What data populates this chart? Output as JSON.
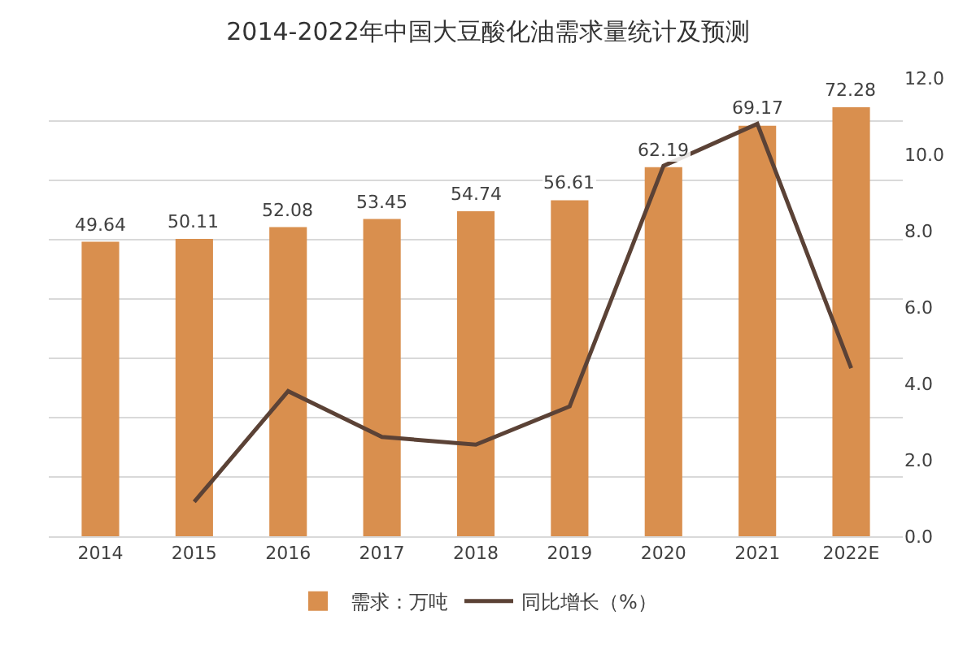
{
  "chart_data": {
    "type": "bar",
    "title": "2014-2022年中国大豆酸化油需求量统计及预测",
    "categories": [
      "2014",
      "2015",
      "2016",
      "2017",
      "2018",
      "2019",
      "2020",
      "2021",
      "2022E"
    ],
    "series": [
      {
        "name": "需求：万吨",
        "color": "#d98f4e",
        "values": [
          49.64,
          50.11,
          52.08,
          53.45,
          54.74,
          56.61,
          62.19,
          69.17,
          72.28
        ],
        "value_labels": [
          "49.64",
          "50.11",
          "52.08",
          "53.45",
          "54.74",
          "56.61",
          "62.19",
          "69.17",
          "72.28"
        ]
      },
      {
        "name": "同比增长（%）",
        "type": "line",
        "axis": "y2",
        "color": "#5b4236",
        "values": [
          null,
          0.9,
          3.8,
          2.6,
          2.4,
          3.4,
          9.7,
          10.8,
          4.4
        ]
      }
    ],
    "y2lim": [
      0,
      12
    ],
    "y2ticks": [
      {
        "value": 0,
        "label": "0.0"
      },
      {
        "value": 2,
        "label": "2.0"
      },
      {
        "value": 4,
        "label": "4.0"
      },
      {
        "value": 6,
        "label": "6.0"
      },
      {
        "value": 8,
        "label": "8.0"
      },
      {
        "value": 10,
        "label": "10.0"
      },
      {
        "value": 12,
        "label": "12.0"
      }
    ],
    "grid": "y",
    "legend": "bottom",
    "marker": "none",
    "line_style": "solid"
  }
}
